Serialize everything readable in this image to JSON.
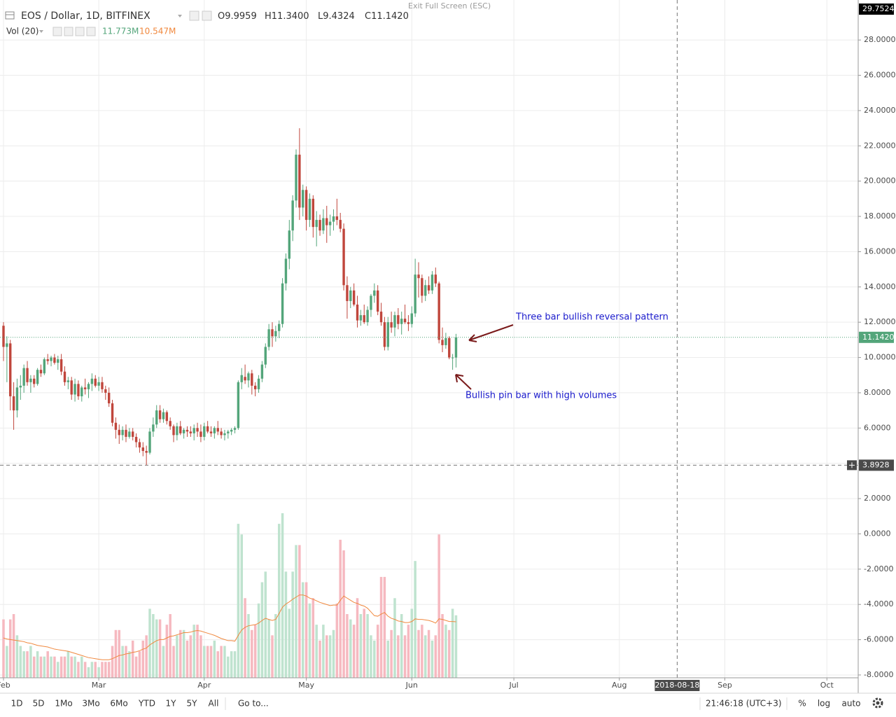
{
  "header": {
    "symbol": "EOS / Dollar, 1D, BITFINEX",
    "exit": "Exit Full Screen (ESC)"
  },
  "chart_data": {
    "type": "candlestick",
    "ohlc_legend": [
      {
        "name": "O",
        "value": 9.9959,
        "label": "9.9959"
      },
      {
        "name": "H",
        "value": 11.34,
        "label": "11.3400"
      },
      {
        "name": "L",
        "value": 9.4324,
        "label": "9.4324"
      },
      {
        "name": "C",
        "value": 11.142,
        "label": "11.1420"
      }
    ],
    "open": [
      11.8,
      10.6,
      10.8,
      7.8,
      7.0,
      8.3,
      8.4,
      9.4,
      8.6,
      8.8,
      8.5,
      9.3,
      9.1,
      9.9,
      9.8,
      10.0,
      9.7,
      9.9,
      9.2,
      8.6,
      8.7,
      7.9,
      8.5,
      7.8,
      8.3,
      8.2,
      8.5,
      8.8,
      8.4,
      8.6,
      8.2,
      8.0,
      7.4,
      6.3,
      5.9,
      5.6,
      5.9,
      5.5,
      5.8,
      5.5,
      5.2,
      4.9,
      4.7,
      4.6,
      5.8,
      6.2,
      7.0,
      6.5,
      6.9,
      6.4,
      6.1,
      5.6,
      6.1,
      5.7,
      5.9,
      5.8,
      5.7,
      6.0,
      5.8,
      5.5,
      6.1,
      5.8,
      5.7,
      6.0,
      5.8,
      5.6,
      5.7,
      5.8,
      5.9,
      6.0,
      8.6,
      8.9,
      8.7,
      9.1,
      8.4,
      8.2,
      8.8,
      9.6,
      10.6,
      11.6,
      11.2,
      11.5,
      11.9,
      14.2,
      15.6,
      17.2,
      18.9,
      21.5,
      18.5,
      19.5,
      17.8,
      19.0,
      17.4,
      17.8,
      17.2,
      17.9,
      17.5,
      17.7,
      18.0,
      17.8,
      17.3,
      14.1,
      13.2,
      13.8,
      13.0,
      12.1,
      12.4,
      12.0,
      12.7,
      13.5,
      13.8,
      12.6,
      12.0,
      10.6,
      12.0,
      11.7,
      12.4,
      11.9,
      12.2,
      12.0,
      11.9,
      12.5,
      14.7,
      14.5,
      13.5,
      14.1,
      13.8,
      14.7,
      14.2,
      11.0,
      10.7,
      11.1,
      10.0,
      9.9959
    ],
    "high": [
      12.0,
      11.2,
      11.0,
      8.6,
      8.8,
      9.0,
      9.6,
      9.8,
      9.0,
      9.0,
      9.4,
      9.6,
      10.0,
      10.2,
      10.1,
      10.2,
      10.1,
      10.2,
      9.5,
      8.9,
      8.9,
      8.8,
      8.7,
      8.4,
      8.8,
      8.6,
      9.1,
      9.0,
      8.9,
      8.9,
      8.4,
      8.3,
      7.6,
      6.6,
      6.2,
      6.1,
      6.2,
      6.0,
      6.0,
      5.7,
      5.4,
      5.2,
      5.0,
      6.0,
      6.6,
      7.3,
      7.3,
      7.1,
      7.0,
      6.6,
      6.2,
      6.3,
      6.4,
      6.0,
      6.1,
      6.1,
      6.2,
      6.3,
      6.2,
      6.3,
      6.4,
      6.1,
      6.1,
      6.4,
      6.0,
      5.9,
      5.9,
      6.0,
      6.1,
      8.7,
      9.4,
      9.6,
      9.2,
      9.3,
      8.6,
      9.0,
      9.8,
      10.8,
      11.9,
      12.0,
      11.8,
      12.1,
      14.5,
      15.9,
      17.8,
      19.2,
      21.8,
      23.0,
      19.8,
      19.7,
      19.3,
      19.2,
      18.3,
      18.1,
      18.4,
      18.6,
      18.1,
      18.4,
      19.0,
      18.2,
      17.6,
      14.6,
      14.0,
      14.2,
      13.5,
      12.7,
      13.0,
      12.9,
      13.6,
      14.2,
      14.1,
      13.1,
      12.3,
      12.3,
      12.6,
      12.6,
      12.8,
      12.6,
      13.0,
      12.4,
      12.9,
      15.6,
      15.4,
      14.7,
      14.4,
      14.6,
      14.9,
      15.1,
      14.3,
      11.7,
      11.4,
      11.2,
      10.2,
      11.34
    ],
    "low": [
      9.8,
      8.6,
      7.0,
      5.9,
      6.6,
      7.6,
      8.0,
      8.4,
      8.0,
      8.3,
      8.4,
      8.9,
      9.0,
      9.6,
      9.5,
      9.6,
      9.3,
      9.0,
      8.4,
      8.2,
      7.6,
      7.5,
      7.6,
      7.5,
      7.9,
      7.7,
      8.1,
      8.3,
      8.1,
      8.0,
      7.6,
      7.2,
      6.1,
      5.4,
      5.1,
      5.3,
      5.2,
      5.4,
      5.3,
      4.9,
      4.6,
      4.4,
      3.9,
      4.5,
      5.5,
      6.0,
      6.3,
      6.3,
      6.2,
      5.9,
      5.2,
      5.3,
      5.6,
      5.4,
      5.5,
      5.5,
      5.3,
      5.5,
      5.2,
      5.3,
      5.7,
      5.5,
      5.4,
      5.6,
      5.4,
      5.3,
      5.4,
      5.6,
      5.7,
      5.9,
      8.2,
      8.5,
      8.3,
      7.9,
      7.8,
      8.0,
      8.6,
      9.4,
      10.4,
      10.6,
      10.9,
      11.1,
      11.7,
      13.8,
      15.0,
      16.6,
      18.5,
      17.8,
      18.0,
      17.2,
      17.4,
      16.8,
      16.3,
      16.9,
      17.0,
      16.5,
      16.9,
      17.2,
      17.5,
      17.1,
      13.8,
      12.2,
      12.8,
      12.9,
      11.7,
      11.8,
      11.9,
      11.8,
      12.3,
      13.1,
      12.4,
      11.8,
      10.4,
      10.4,
      11.4,
      11.2,
      11.6,
      11.3,
      11.9,
      11.5,
      11.7,
      12.3,
      13.4,
      13.1,
      13.2,
      13.6,
      13.6,
      14.0,
      10.8,
      10.3,
      10.5,
      9.9,
      9.3,
      9.4324
    ],
    "close": [
      10.6,
      10.8,
      7.8,
      7.0,
      8.3,
      8.4,
      9.4,
      8.6,
      8.8,
      8.5,
      9.3,
      9.1,
      9.9,
      9.8,
      10.0,
      9.7,
      9.9,
      9.2,
      8.6,
      8.7,
      7.9,
      8.5,
      7.8,
      8.3,
      8.2,
      8.5,
      8.8,
      8.4,
      8.6,
      8.2,
      8.0,
      7.4,
      6.3,
      5.9,
      5.6,
      5.9,
      5.5,
      5.8,
      5.5,
      5.2,
      4.9,
      4.7,
      4.6,
      5.8,
      6.2,
      7.0,
      6.5,
      6.9,
      6.4,
      6.1,
      5.6,
      6.1,
      5.7,
      5.9,
      5.8,
      5.7,
      6.0,
      5.8,
      5.5,
      6.1,
      5.8,
      5.7,
      6.0,
      5.8,
      5.6,
      5.7,
      5.8,
      5.9,
      6.0,
      8.6,
      9.0,
      8.7,
      9.1,
      8.4,
      8.2,
      8.8,
      9.6,
      10.6,
      11.6,
      11.2,
      11.5,
      11.9,
      14.2,
      15.6,
      17.2,
      18.9,
      21.5,
      18.5,
      19.5,
      17.8,
      19.0,
      17.4,
      17.8,
      17.2,
      17.9,
      17.5,
      17.7,
      18.0,
      17.8,
      17.3,
      14.1,
      13.2,
      13.8,
      13.0,
      12.1,
      12.4,
      12.0,
      12.7,
      13.5,
      13.8,
      12.6,
      12.0,
      10.6,
      12.0,
      11.7,
      12.4,
      11.9,
      12.2,
      12.0,
      11.9,
      12.5,
      14.7,
      14.5,
      13.5,
      14.1,
      13.8,
      14.7,
      14.2,
      11.0,
      10.7,
      11.1,
      10.0,
      10.0,
      11.142
    ],
    "up_color": "#53a57a",
    "down_color": "#c0463c",
    "xlim": [
      0,
      251.2
    ],
    "xticks": [
      {
        "value": 0,
        "label": "Feb"
      },
      {
        "value": 28,
        "label": "Mar"
      },
      {
        "value": 59,
        "label": "Apr"
      },
      {
        "value": 89,
        "label": "May"
      },
      {
        "value": 120,
        "label": "Jun"
      },
      {
        "value": 150,
        "label": "Jul"
      },
      {
        "value": 181,
        "label": "Aug"
      },
      {
        "value": 212,
        "label": "Sep"
      },
      {
        "value": 242,
        "label": "Oct"
      }
    ],
    "ylim": [
      -8.16,
      30.07
    ],
    "yticks": [
      {
        "value": -8,
        "label": "-8.0000"
      },
      {
        "value": -6,
        "label": "-6.0000"
      },
      {
        "value": -4,
        "label": "-4.0000"
      },
      {
        "value": -2,
        "label": "-2.0000"
      },
      {
        "value": 0,
        "label": "0.0000"
      },
      {
        "value": 2,
        "label": "2.0000"
      },
      {
        "value": 4,
        "label": "4.0000"
      },
      {
        "value": 6,
        "label": "6.0000"
      },
      {
        "value": 8,
        "label": "8.0000"
      },
      {
        "value": 10,
        "label": "10.0000"
      },
      {
        "value": 12,
        "label": "12.0000"
      },
      {
        "value": 14,
        "label": "14.0000"
      },
      {
        "value": 16,
        "label": "16.0000"
      },
      {
        "value": 18,
        "label": "18.0000"
      },
      {
        "value": 20,
        "label": "20.0000"
      },
      {
        "value": 22,
        "label": "22.0000"
      },
      {
        "value": 24,
        "label": "24.0000"
      },
      {
        "value": 26,
        "label": "26.0000"
      },
      {
        "value": 28,
        "label": "28.0000"
      }
    ],
    "grid": true,
    "price_markers": [
      {
        "value": 29.7524,
        "label": "29.7524",
        "color": "#000000"
      },
      {
        "value": 11.142,
        "label": "11.1420",
        "color": "#53a57a"
      }
    ],
    "crosshair": {
      "x": {
        "value": 198,
        "label": "2018-08-18"
      },
      "y": {
        "value": 3.8928,
        "label": "3.8928"
      }
    },
    "volume": {
      "name": "Vol (20)",
      "ylim": [
        0,
        127
      ],
      "values": [
        11,
        6,
        11,
        12,
        8,
        6,
        5,
        5,
        6,
        4,
        5,
        4,
        4,
        5,
        4,
        4,
        3,
        4,
        4,
        5,
        4,
        4,
        3,
        4,
        3,
        2,
        3,
        3,
        2,
        3,
        3,
        3,
        6,
        9,
        9,
        6,
        6,
        5,
        7,
        4,
        5,
        7,
        8,
        13,
        12,
        11,
        11,
        6,
        10,
        12,
        6,
        8,
        9,
        9,
        7,
        8,
        10,
        10,
        8,
        6,
        6,
        6,
        7,
        5,
        6,
        6,
        4,
        5,
        5,
        29,
        27,
        15,
        12,
        9,
        10,
        14,
        18,
        20,
        11,
        8,
        12,
        29,
        31,
        20,
        13,
        20,
        25,
        25,
        18,
        18,
        14,
        15,
        10,
        7,
        10,
        8,
        8,
        9,
        14,
        26,
        24,
        12,
        11,
        10,
        15,
        12,
        13,
        12,
        8,
        7,
        10,
        19,
        19,
        7,
        9,
        15,
        8,
        12,
        8,
        10,
        13,
        22,
        9,
        10,
        8,
        9,
        7,
        8,
        27,
        12,
        10,
        9,
        13,
        11.773
      ],
      "last_label": "11.773M",
      "up_color": "#bfe3cf",
      "down_color": "#f6b9c0",
      "ma": {
        "color": "#f0883e",
        "values": [
          7.5,
          7.3,
          7.2,
          7.1,
          7.0,
          6.9,
          6.8,
          6.6,
          6.5,
          6.3,
          6.1,
          6.0,
          5.9,
          5.8,
          5.6,
          5.4,
          5.3,
          5.2,
          5.1,
          5.0,
          4.8,
          4.6,
          4.4,
          4.2,
          4.0,
          3.8,
          3.7,
          3.6,
          3.5,
          3.4,
          3.4,
          3.4,
          3.6,
          3.9,
          4.2,
          4.3,
          4.5,
          4.6,
          4.8,
          4.9,
          5.1,
          5.4,
          5.6,
          6.2,
          6.6,
          7.0,
          7.2,
          7.2,
          7.5,
          7.8,
          7.9,
          8.1,
          8.3,
          8.5,
          8.5,
          8.6,
          8.8,
          8.9,
          8.8,
          8.6,
          8.4,
          8.2,
          8.0,
          7.7,
          7.4,
          7.2,
          7.0,
          7.0,
          6.9,
          8.0,
          9.0,
          9.5,
          9.8,
          9.9,
          10.0,
          10.3,
          10.8,
          11.2,
          11.0,
          10.8,
          11.0,
          12.1,
          13.3,
          13.9,
          14.3,
          14.8,
          15.2,
          15.6,
          15.6,
          15.4,
          15.0,
          14.8,
          14.5,
          14.2,
          14.0,
          13.8,
          13.6,
          13.7,
          13.7,
          14.6,
          15.4,
          15.0,
          14.6,
          14.2,
          14.0,
          13.7,
          13.5,
          13.1,
          12.4,
          11.7,
          11.6,
          12.0,
          12.3,
          11.6,
          11.2,
          11.0,
          10.7,
          10.6,
          10.4,
          10.4,
          10.6,
          11.1,
          11.0,
          11.0,
          10.9,
          10.8,
          10.6,
          10.3,
          11.1,
          11.0,
          10.8,
          10.6,
          10.6,
          10.547
        ],
        "last_label": "10.547M"
      }
    },
    "annotations": [
      "Three bar bullish reversal pattern",
      "Bullish pin bar with high volumes"
    ]
  },
  "toolbar": {
    "ranges": [
      "1D",
      "5D",
      "1Mo",
      "3Mo",
      "6Mo",
      "YTD",
      "1Y",
      "5Y",
      "All"
    ],
    "goto": "Go to...",
    "time": "21:46:18 (UTC+3)",
    "options": [
      "%",
      "log",
      "auto"
    ]
  }
}
